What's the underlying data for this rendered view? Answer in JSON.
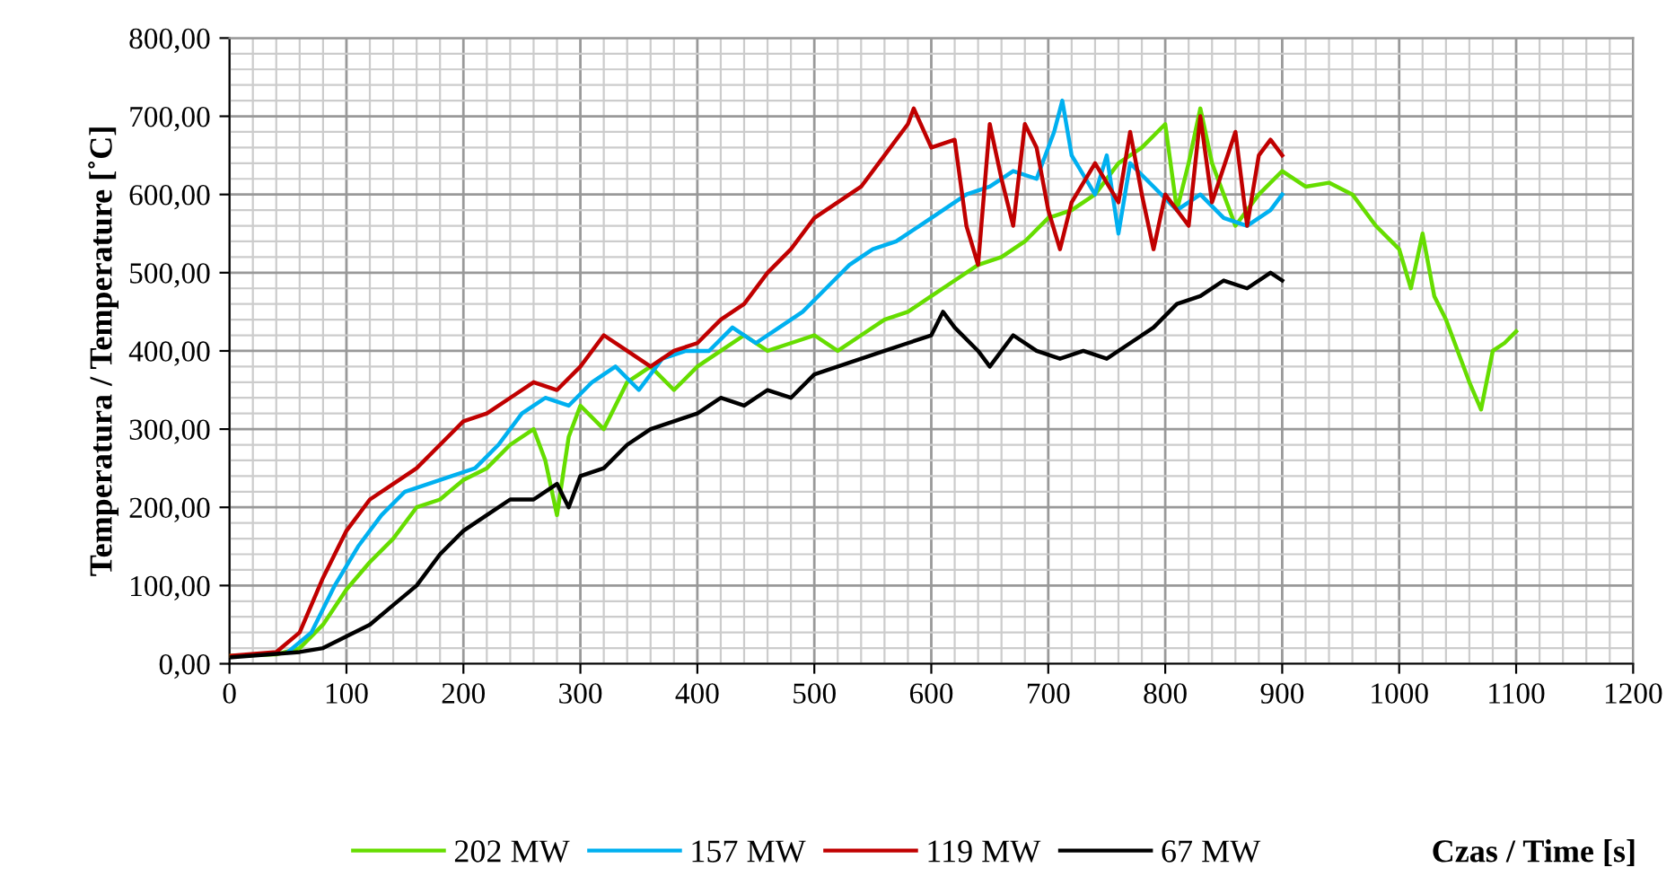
{
  "chart_data": {
    "type": "line",
    "xlabel": "Czas / Time [s]",
    "ylabel": "Temperatura / Temperature [˚C]",
    "xlim": [
      0,
      1200
    ],
    "xticks": [
      0,
      100,
      200,
      300,
      400,
      500,
      600,
      700,
      800,
      900,
      1000,
      1100,
      1200
    ],
    "ylim": [
      0,
      800
    ],
    "yticks": [
      {
        "value": 0,
        "label": "0,00"
      },
      {
        "value": 100,
        "label": "100,00"
      },
      {
        "value": 200,
        "label": "200,00"
      },
      {
        "value": 300,
        "label": "300,00"
      },
      {
        "value": 400,
        "label": "400,00"
      },
      {
        "value": 500,
        "label": "500,00"
      },
      {
        "value": 600,
        "label": "600,00"
      },
      {
        "value": 700,
        "label": "700,00"
      },
      {
        "value": 800,
        "label": "800,00"
      }
    ],
    "grid": true,
    "legend": "bottom",
    "marker": "none",
    "line_style": "solid",
    "series": [
      {
        "name": "202 MW",
        "color": "#66dd00",
        "x": [
          0,
          40,
          60,
          80,
          100,
          120,
          140,
          160,
          180,
          200,
          220,
          240,
          260,
          270,
          280,
          290,
          300,
          320,
          340,
          360,
          380,
          400,
          420,
          440,
          460,
          480,
          500,
          520,
          540,
          560,
          580,
          600,
          620,
          640,
          660,
          680,
          700,
          720,
          740,
          760,
          780,
          800,
          810,
          820,
          830,
          840,
          860,
          880,
          900,
          920,
          940,
          960,
          980,
          1000,
          1010,
          1020,
          1030,
          1040,
          1050,
          1060,
          1070,
          1080,
          1090,
          1100
        ],
        "values": [
          10,
          12,
          20,
          50,
          95,
          130,
          160,
          200,
          210,
          235,
          250,
          280,
          300,
          260,
          190,
          290,
          330,
          300,
          360,
          380,
          350,
          380,
          400,
          420,
          400,
          410,
          420,
          400,
          420,
          440,
          450,
          470,
          490,
          510,
          520,
          540,
          570,
          580,
          600,
          640,
          660,
          690,
          580,
          640,
          710,
          640,
          560,
          600,
          630,
          610,
          615,
          600,
          560,
          530,
          480,
          550,
          470,
          440,
          400,
          360,
          325,
          400,
          410,
          425
        ]
      },
      {
        "name": "157 MW",
        "color": "#00b0f0",
        "x": [
          50,
          70,
          90,
          110,
          130,
          150,
          170,
          190,
          210,
          230,
          250,
          270,
          290,
          310,
          330,
          350,
          370,
          390,
          410,
          430,
          450,
          470,
          490,
          510,
          530,
          550,
          570,
          590,
          610,
          630,
          650,
          670,
          690,
          705,
          712,
          720,
          740,
          750,
          760,
          770,
          790,
          810,
          830,
          850,
          870,
          890,
          900
        ],
        "values": [
          15,
          40,
          100,
          150,
          190,
          220,
          230,
          240,
          250,
          280,
          320,
          340,
          330,
          360,
          380,
          350,
          390,
          400,
          400,
          430,
          410,
          430,
          450,
          480,
          510,
          530,
          540,
          560,
          580,
          600,
          610,
          630,
          620,
          680,
          720,
          650,
          600,
          650,
          550,
          640,
          610,
          580,
          600,
          570,
          560,
          580,
          600
        ]
      },
      {
        "name": "119 MW",
        "color": "#c00000",
        "x": [
          0,
          40,
          60,
          80,
          100,
          120,
          140,
          160,
          180,
          200,
          220,
          240,
          260,
          280,
          300,
          320,
          340,
          360,
          380,
          400,
          420,
          440,
          460,
          480,
          500,
          520,
          540,
          560,
          580,
          585,
          600,
          620,
          630,
          640,
          650,
          660,
          670,
          680,
          690,
          700,
          710,
          720,
          740,
          760,
          770,
          780,
          790,
          800,
          820,
          830,
          840,
          860,
          870,
          880,
          890,
          900
        ],
        "values": [
          10,
          15,
          40,
          110,
          170,
          210,
          230,
          250,
          280,
          310,
          320,
          340,
          360,
          350,
          380,
          420,
          400,
          380,
          400,
          410,
          440,
          460,
          500,
          530,
          570,
          590,
          610,
          650,
          690,
          710,
          660,
          670,
          560,
          510,
          690,
          620,
          560,
          690,
          660,
          580,
          530,
          590,
          640,
          590,
          680,
          600,
          530,
          600,
          560,
          700,
          590,
          680,
          560,
          650,
          670,
          650
        ]
      },
      {
        "name": "67 MW",
        "color": "#000000",
        "x": [
          0,
          60,
          80,
          100,
          120,
          140,
          160,
          180,
          200,
          220,
          240,
          260,
          280,
          290,
          300,
          320,
          340,
          360,
          380,
          400,
          420,
          440,
          460,
          480,
          500,
          520,
          540,
          560,
          580,
          600,
          610,
          620,
          640,
          650,
          670,
          690,
          710,
          730,
          750,
          770,
          790,
          810,
          830,
          850,
          870,
          890,
          900
        ],
        "values": [
          8,
          15,
          20,
          35,
          50,
          75,
          100,
          140,
          170,
          190,
          210,
          210,
          230,
          200,
          240,
          250,
          280,
          300,
          310,
          320,
          340,
          330,
          350,
          340,
          370,
          380,
          390,
          400,
          410,
          420,
          450,
          430,
          400,
          380,
          420,
          400,
          390,
          400,
          390,
          410,
          430,
          460,
          470,
          490,
          480,
          500,
          490
        ]
      }
    ]
  }
}
